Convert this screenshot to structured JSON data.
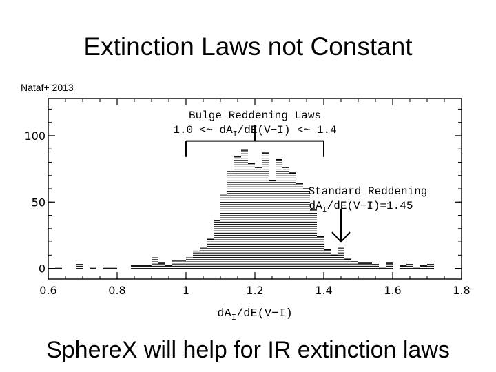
{
  "slide": {
    "title": "Extinction Laws not Constant",
    "citation": "Nataf+ 2013",
    "caption": "SphereX will help for IR extinction laws"
  },
  "chart_data": {
    "type": "bar",
    "style": "histogram with horizontal hatching",
    "xlabel": "dA_I/dE(V−I)",
    "ylabel": "",
    "xlim": [
      0.6,
      1.8
    ],
    "ylim": [
      -8,
      128
    ],
    "x_ticks": [
      0.6,
      0.8,
      1.0,
      1.2,
      1.4,
      1.6,
      1.8
    ],
    "x_tick_labels": [
      "0.6",
      "0.8",
      "1",
      "1.2",
      "1.4",
      "1.6",
      "1.8"
    ],
    "y_ticks": [
      0,
      50,
      100
    ],
    "y_tick_labels": [
      "0",
      "50",
      "100"
    ],
    "bin_width": 0.02,
    "bins": [
      {
        "x": 0.63,
        "y": 1
      },
      {
        "x": 0.69,
        "y": 3
      },
      {
        "x": 0.73,
        "y": 1
      },
      {
        "x": 0.77,
        "y": 1
      },
      {
        "x": 0.79,
        "y": 1
      },
      {
        "x": 0.85,
        "y": 2
      },
      {
        "x": 0.87,
        "y": 2
      },
      {
        "x": 0.89,
        "y": 2
      },
      {
        "x": 0.91,
        "y": 8
      },
      {
        "x": 0.93,
        "y": 4
      },
      {
        "x": 0.95,
        "y": 2
      },
      {
        "x": 0.97,
        "y": 6
      },
      {
        "x": 0.99,
        "y": 6
      },
      {
        "x": 1.01,
        "y": 8
      },
      {
        "x": 1.03,
        "y": 13
      },
      {
        "x": 1.05,
        "y": 16
      },
      {
        "x": 1.07,
        "y": 22
      },
      {
        "x": 1.09,
        "y": 36
      },
      {
        "x": 1.11,
        "y": 56
      },
      {
        "x": 1.13,
        "y": 73
      },
      {
        "x": 1.15,
        "y": 84
      },
      {
        "x": 1.17,
        "y": 89
      },
      {
        "x": 1.19,
        "y": 79
      },
      {
        "x": 1.21,
        "y": 76
      },
      {
        "x": 1.23,
        "y": 87
      },
      {
        "x": 1.25,
        "y": 66
      },
      {
        "x": 1.27,
        "y": 82
      },
      {
        "x": 1.29,
        "y": 76
      },
      {
        "x": 1.31,
        "y": 72
      },
      {
        "x": 1.33,
        "y": 64
      },
      {
        "x": 1.35,
        "y": 60
      },
      {
        "x": 1.37,
        "y": 44
      },
      {
        "x": 1.39,
        "y": 24
      },
      {
        "x": 1.41,
        "y": 14
      },
      {
        "x": 1.43,
        "y": 10
      },
      {
        "x": 1.45,
        "y": 16
      },
      {
        "x": 1.47,
        "y": 7
      },
      {
        "x": 1.49,
        "y": 5
      },
      {
        "x": 1.51,
        "y": 4
      },
      {
        "x": 1.53,
        "y": 4
      },
      {
        "x": 1.55,
        "y": 3
      },
      {
        "x": 1.57,
        "y": 1
      },
      {
        "x": 1.59,
        "y": 4
      },
      {
        "x": 1.63,
        "y": 2
      },
      {
        "x": 1.65,
        "y": 3
      },
      {
        "x": 1.67,
        "y": 1
      },
      {
        "x": 1.69,
        "y": 2
      },
      {
        "x": 1.71,
        "y": 3
      }
    ],
    "annotations": {
      "bulge": {
        "line1": "Bulge Reddening Laws",
        "line2_prefix": "1.0 <~ dA",
        "line2_sub": "I",
        "line2_suffix": "/dE(V−I) <~ 1.4",
        "range": [
          1.0,
          1.4
        ],
        "bracket_y": 96,
        "bracket_stem_top_y": 108,
        "bracket_tick_bottom_y": 84
      },
      "standard": {
        "line1": "Standard Reddening",
        "line2_prefix": "dA",
        "line2_sub": "I",
        "line2_suffix": "/dE(V−I)=1.45",
        "x": 1.45,
        "arrow_from_y": 45,
        "arrow_to_y": 20
      }
    }
  }
}
